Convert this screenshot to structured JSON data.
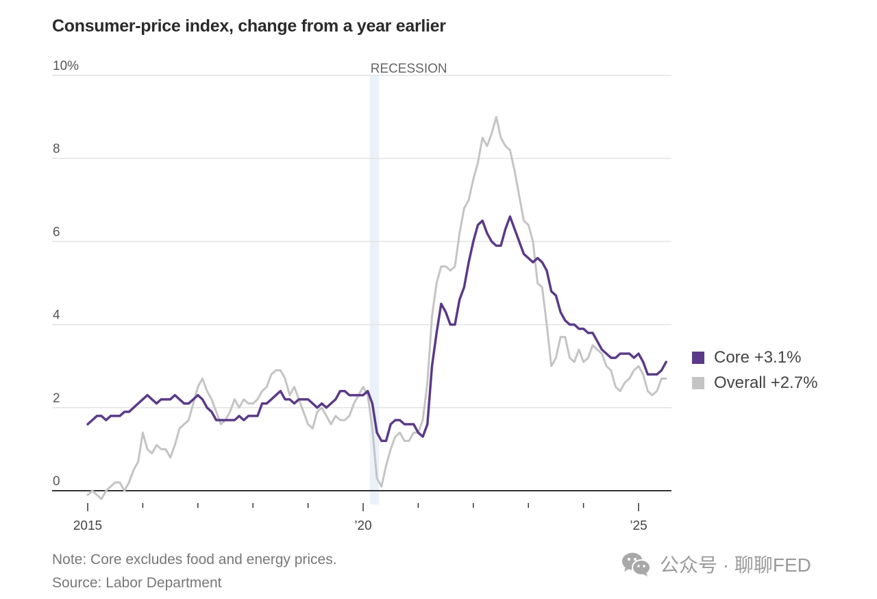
{
  "chart_data": {
    "type": "line",
    "title": "Consumer-price index, change from a year earlier",
    "xlabel": "",
    "ylabel": "",
    "y_unit_label": "10%",
    "ylim": [
      0,
      10
    ],
    "yticks": [
      0,
      2,
      4,
      6,
      8,
      10
    ],
    "ytick_labels": [
      "0",
      "2",
      "4",
      "6",
      "8",
      "10%"
    ],
    "xlim_start": "2015-01",
    "xlim_end": "2025-07",
    "x_start_year": 2015,
    "x_start_month": 1,
    "xtick_years": [
      2015,
      2016,
      2017,
      2018,
      2019,
      2020,
      2021,
      2022,
      2023,
      2024,
      2025
    ],
    "xtick_labels": [
      {
        "year": 2015,
        "label": "2015"
      },
      {
        "year": 2020,
        "label": "’20"
      },
      {
        "year": 2025,
        "label": "’25"
      }
    ],
    "grid": true,
    "annotations": [
      {
        "type": "shaded-band",
        "label": "RECESSION",
        "start": "2020-02",
        "end": "2020-04"
      }
    ],
    "legend_position": "right",
    "series": [
      {
        "name": "Core",
        "legend_label": "Core +3.1%",
        "color": "#5b3a87",
        "values": [
          1.6,
          1.7,
          1.8,
          1.8,
          1.7,
          1.8,
          1.8,
          1.8,
          1.9,
          1.9,
          2.0,
          2.1,
          2.2,
          2.3,
          2.2,
          2.1,
          2.2,
          2.2,
          2.2,
          2.3,
          2.2,
          2.1,
          2.1,
          2.2,
          2.3,
          2.2,
          2.0,
          1.9,
          1.7,
          1.7,
          1.7,
          1.7,
          1.7,
          1.8,
          1.7,
          1.8,
          1.8,
          1.8,
          2.1,
          2.1,
          2.2,
          2.3,
          2.4,
          2.2,
          2.2,
          2.1,
          2.2,
          2.2,
          2.2,
          2.1,
          2.0,
          2.1,
          2.0,
          2.1,
          2.2,
          2.4,
          2.4,
          2.3,
          2.3,
          2.3,
          2.3,
          2.4,
          2.1,
          1.4,
          1.2,
          1.2,
          1.6,
          1.7,
          1.7,
          1.6,
          1.6,
          1.6,
          1.4,
          1.3,
          1.6,
          3.0,
          3.8,
          4.5,
          4.3,
          4.0,
          4.0,
          4.6,
          4.9,
          5.5,
          6.0,
          6.4,
          6.5,
          6.2,
          6.0,
          5.9,
          5.9,
          6.3,
          6.6,
          6.3,
          6.0,
          5.7,
          5.6,
          5.5,
          5.6,
          5.5,
          5.3,
          4.8,
          4.7,
          4.3,
          4.1,
          4.0,
          4.0,
          3.9,
          3.9,
          3.8,
          3.8,
          3.6,
          3.4,
          3.3,
          3.2,
          3.2,
          3.3,
          3.3,
          3.3,
          3.2,
          3.3,
          3.1,
          2.8,
          2.8,
          2.8,
          2.9,
          3.1
        ]
      },
      {
        "name": "Overall",
        "legend_label": "Overall +2.7%",
        "color": "#c4c4c4",
        "values": [
          -0.1,
          0.0,
          -0.1,
          -0.2,
          0.0,
          0.1,
          0.2,
          0.2,
          0.0,
          0.2,
          0.5,
          0.7,
          1.4,
          1.0,
          0.9,
          1.1,
          1.0,
          1.0,
          0.8,
          1.1,
          1.5,
          1.6,
          1.7,
          2.1,
          2.5,
          2.7,
          2.4,
          2.2,
          1.9,
          1.6,
          1.7,
          1.9,
          2.2,
          2.0,
          2.2,
          2.1,
          2.1,
          2.2,
          2.4,
          2.5,
          2.8,
          2.9,
          2.9,
          2.7,
          2.3,
          2.5,
          2.2,
          1.9,
          1.6,
          1.5,
          1.9,
          2.0,
          1.8,
          1.6,
          1.8,
          1.7,
          1.7,
          1.8,
          2.1,
          2.3,
          2.5,
          2.3,
          1.5,
          0.3,
          0.1,
          0.6,
          1.0,
          1.3,
          1.4,
          1.2,
          1.2,
          1.4,
          1.4,
          1.7,
          2.6,
          4.2,
          5.0,
          5.4,
          5.4,
          5.3,
          5.4,
          6.2,
          6.8,
          7.0,
          7.5,
          7.9,
          8.5,
          8.3,
          8.6,
          9.0,
          8.5,
          8.3,
          8.2,
          7.7,
          7.1,
          6.5,
          6.4,
          6.0,
          5.0,
          4.9,
          4.0,
          3.0,
          3.2,
          3.7,
          3.7,
          3.2,
          3.1,
          3.4,
          3.1,
          3.2,
          3.5,
          3.4,
          3.3,
          3.0,
          2.9,
          2.5,
          2.4,
          2.6,
          2.7,
          2.9,
          3.0,
          2.8,
          2.4,
          2.3,
          2.4,
          2.7,
          2.7
        ]
      }
    ]
  },
  "note": "Note: Core excludes food and energy prices.",
  "source": "Source: Labor Department",
  "watermark": {
    "icon": "wechat-icon",
    "text": "公众号 · 聊聊FED"
  }
}
